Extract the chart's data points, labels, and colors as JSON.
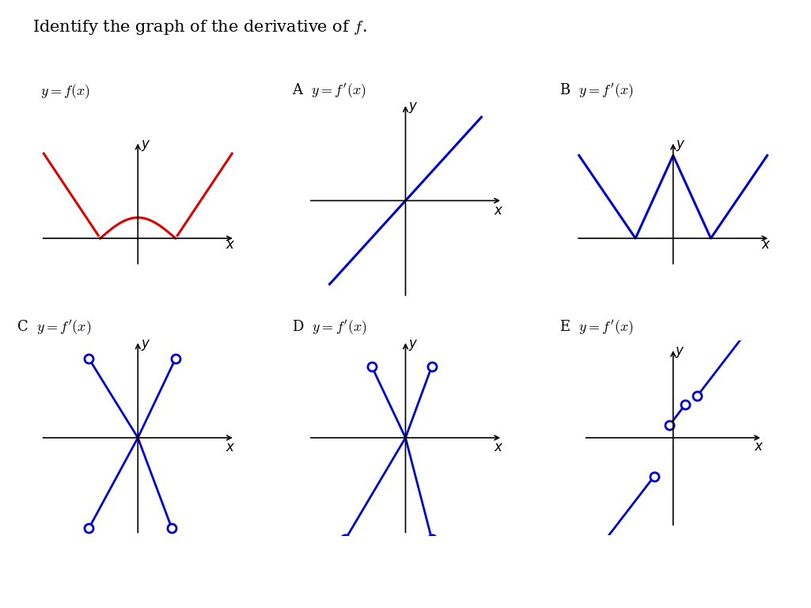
{
  "bg_color": "#ffffff",
  "blue": "#0000cd",
  "red": "#dd0000",
  "black": "#000000",
  "title": "Identify the graph of the derivative of $f$.",
  "panels": [
    {
      "label": "$y = f(x)$",
      "letter": "",
      "row": 0,
      "col": 0
    },
    {
      "label": "$y = f'(x)$",
      "letter": "A",
      "row": 0,
      "col": 1
    },
    {
      "label": "$y = f'(x)$",
      "letter": "B",
      "row": 0,
      "col": 2
    },
    {
      "label": "$y = f'(x)$",
      "letter": "C",
      "row": 1,
      "col": 0
    },
    {
      "label": "$y = f'(x)$",
      "letter": "D",
      "row": 1,
      "col": 1
    },
    {
      "label": "$y = f'(x)$",
      "letter": "E",
      "row": 1,
      "col": 2
    }
  ]
}
